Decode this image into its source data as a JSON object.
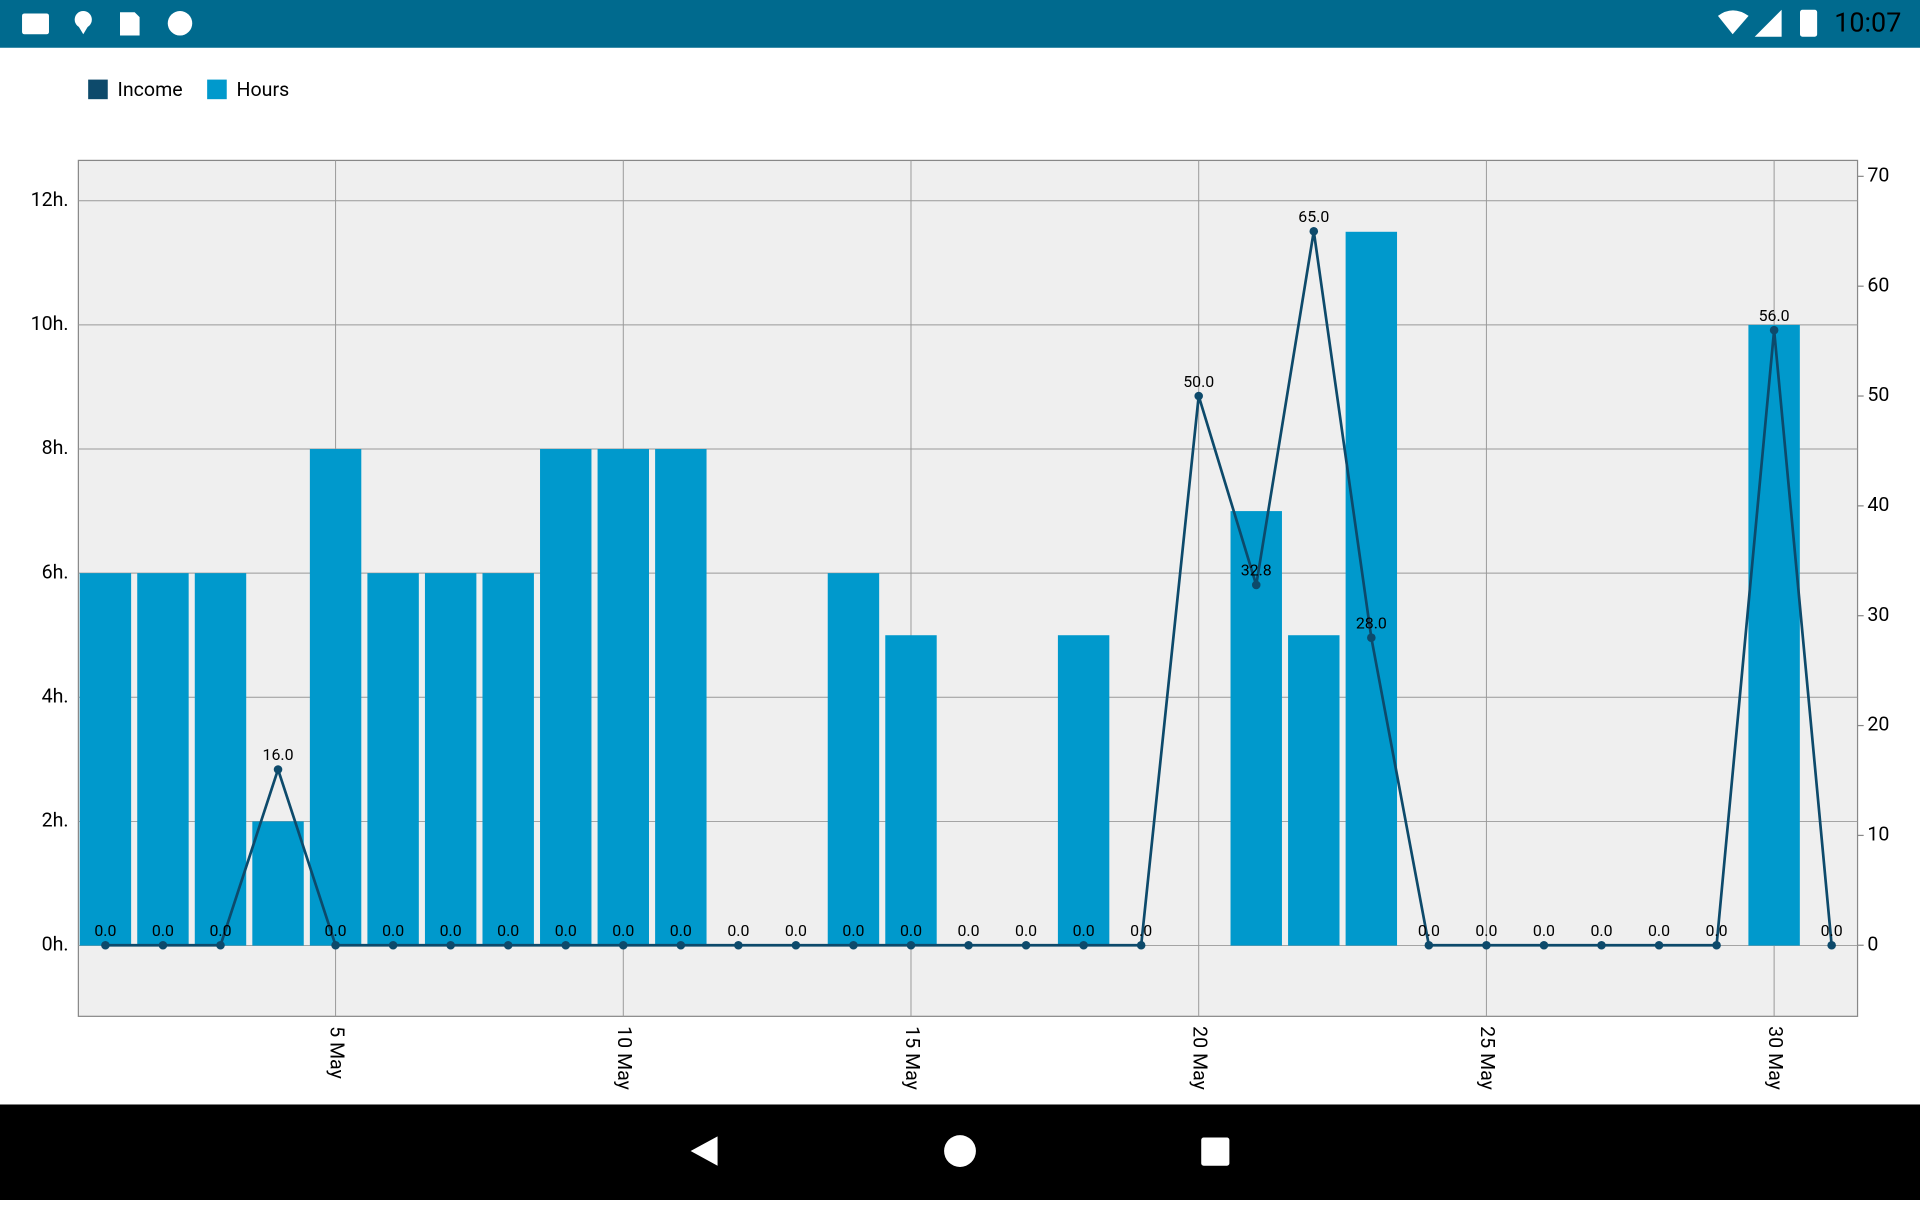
{
  "status_bar": {
    "time": "10:07"
  },
  "chart_data": {
    "type": "combo",
    "x": [
      1,
      2,
      3,
      4,
      5,
      6,
      7,
      8,
      9,
      10,
      11,
      12,
      13,
      14,
      15,
      16,
      17,
      18,
      19,
      20,
      21,
      22,
      23,
      24,
      25,
      26,
      27,
      28,
      29,
      30,
      31
    ],
    "series": [
      {
        "name": "Income",
        "type": "line",
        "axis": "y2",
        "color": "#0d4a6b",
        "values": [
          0,
          0,
          0,
          16,
          0,
          0,
          0,
          0,
          0,
          0,
          0,
          0,
          0,
          0,
          0,
          0,
          0,
          0,
          0,
          50,
          32.8,
          65,
          28,
          0,
          0,
          0,
          0,
          0,
          0,
          56,
          0
        ],
        "value_labels": [
          "0.0",
          "0.0",
          "0.0",
          "16.0",
          "0.0",
          "0.0",
          "0.0",
          "0.0",
          "0.0",
          "0.0",
          "0.0",
          "0.0",
          "0.0",
          "0.0",
          "0.0",
          "0.0",
          "0.0",
          "0.0",
          "0.0",
          "50.0",
          "32.8",
          "65.0",
          "28.0",
          "0.0",
          "0.0",
          "0.0",
          "0.0",
          "0.0",
          "0.0",
          "56.0",
          "0.0"
        ]
      },
      {
        "name": "Hours",
        "type": "bar",
        "color": "#0099cc",
        "values": [
          6,
          6,
          6,
          2,
          8,
          6,
          6,
          6,
          8,
          8,
          8,
          0,
          0,
          6,
          5,
          0,
          0,
          5,
          0,
          0,
          7,
          5,
          11.5,
          0,
          0,
          0,
          0,
          0,
          0,
          10,
          0
        ]
      }
    ],
    "xlim": [
      0.53,
      31.45
    ],
    "xticks": [
      {
        "value": 5,
        "label": "5 May"
      },
      {
        "value": 10,
        "label": "10 May"
      },
      {
        "value": 15,
        "label": "15 May"
      },
      {
        "value": 20,
        "label": "20 May"
      },
      {
        "value": 25,
        "label": "25 May"
      },
      {
        "value": 30,
        "label": "30 May"
      }
    ],
    "ylim": [
      -1.14,
      12.65
    ],
    "yticks": [
      {
        "value": 0,
        "label": "0h."
      },
      {
        "value": 2,
        "label": "2h."
      },
      {
        "value": 4,
        "label": "4h."
      },
      {
        "value": 6,
        "label": "6h."
      },
      {
        "value": 8,
        "label": "8h."
      },
      {
        "value": 10,
        "label": "10h."
      },
      {
        "value": 12,
        "label": "12h."
      }
    ],
    "y2lim": [
      -6.47,
      71.45
    ],
    "y2ticks": [
      0,
      10,
      20,
      30,
      40,
      50,
      60,
      70
    ],
    "grid": true,
    "legend": "top-left",
    "background": "#efefef"
  }
}
